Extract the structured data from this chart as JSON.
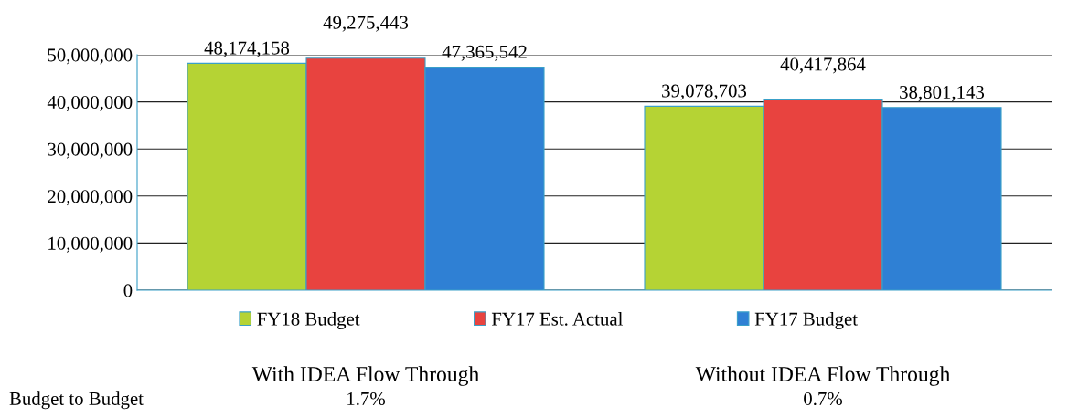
{
  "chart_data": {
    "type": "bar",
    "categories": [
      "With IDEA Flow Through",
      "Without IDEA Flow Through"
    ],
    "series": [
      {
        "name": "FY18 Budget",
        "color": "#b5d334",
        "values": [
          48174158,
          39078703
        ],
        "value_labels": [
          "48,174,158",
          "39,078,703"
        ]
      },
      {
        "name": "FY17 Est. Actual",
        "color": "#e8433f",
        "values": [
          49275443,
          40417864
        ],
        "value_labels": [
          "49,275,443",
          "40,417,864"
        ]
      },
      {
        "name": "FY17 Budget",
        "color": "#2f80d4",
        "values": [
          47365542,
          38801143
        ],
        "value_labels": [
          "47,365,542",
          "38,801,143"
        ]
      }
    ],
    "ylim": [
      0,
      50000000
    ],
    "yticks": [
      {
        "value": 0,
        "label": "0"
      },
      {
        "value": 10000000,
        "label": "10,000,000"
      },
      {
        "value": 20000000,
        "label": "20,000,000"
      },
      {
        "value": 30000000,
        "label": "30,000,000"
      },
      {
        "value": 40000000,
        "label": "40,000,000"
      },
      {
        "value": 50000000,
        "label": "50,000,000"
      }
    ],
    "grid": "y",
    "legend": "bottom",
    "annotations": [
      "Budget to Budget",
      "1.7%",
      "0.7%"
    ]
  }
}
